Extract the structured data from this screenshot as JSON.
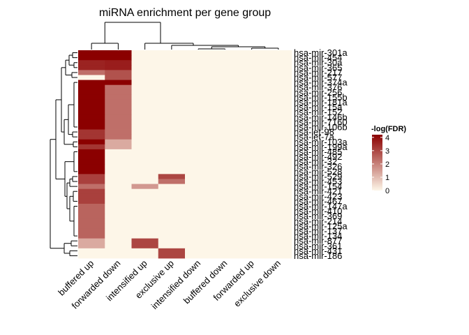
{
  "chart_data": {
    "type": "heatmap",
    "title": "miRNA enrichment per gene group",
    "columns": [
      "buffered up",
      "forwarded down",
      "intensified up",
      "exclusive up",
      "intensified down",
      "buffered down",
      "forwarded up",
      "exclusive down"
    ],
    "rows": [
      "hsa-mir-301a",
      "hsa-mir-454",
      "hsa-mir-30a",
      "hsa-mir-365",
      "hsa-mir-217",
      "hsa-mir-577",
      "hsa-mir-374a",
      "hsa-mir-376",
      "hsa-mir-256",
      "hsa-mir-155b",
      "hsa-mir-181a",
      "hsa-mir-15a",
      "hsa-mir-152",
      "hsa-mir-146b",
      "hsa-mir-7160",
      "hsa-mir-106b",
      "hsa-let-98",
      "hsa-let-7a",
      "hsa-mir-103a",
      "hsa-mir-199a",
      "hsa-mir-485",
      "hsa-mir-492",
      "hsa-mir-32",
      "hsa-mir-326",
      "hsa-mir-528",
      "hsa-mir-529",
      "hsa-mir-453",
      "hsa-mir-154",
      "hsa-mir-421",
      "hsa-mir-423",
      "hsa-mir-467",
      "hsa-mir-147a",
      "hsa-mir-410",
      "hsa-mir-369",
      "hsa-mir-214",
      "hsa-mir-125a",
      "hsa-mir-137",
      "hsa-mir-134",
      "hsa-mir-877",
      "hsa-mir-361",
      "hsa-mir-431",
      "hsa-mir-186"
    ],
    "values": [
      [
        4.2,
        4.2,
        0,
        0,
        0,
        0,
        0,
        0
      ],
      [
        4.2,
        4.2,
        0,
        0,
        0,
        0,
        0,
        0
      ],
      [
        3.6,
        3.7,
        0,
        0,
        0,
        0,
        0,
        0
      ],
      [
        3.6,
        3.7,
        0,
        0,
        0,
        0,
        0,
        0
      ],
      [
        2.3,
        2.8,
        0,
        0,
        0,
        0,
        0,
        0
      ],
      [
        0,
        2.8,
        0,
        0,
        0,
        0,
        0,
        0
      ],
      [
        4.2,
        4.2,
        0,
        0,
        0,
        0,
        0,
        0
      ],
      [
        4.2,
        2.3,
        0,
        0,
        0,
        0,
        0,
        0
      ],
      [
        4.2,
        2.3,
        0,
        0,
        0,
        0,
        0,
        0
      ],
      [
        4.2,
        2.3,
        0,
        0,
        0,
        0,
        0,
        0
      ],
      [
        4.2,
        2.3,
        0,
        0,
        0,
        0,
        0,
        0
      ],
      [
        4.2,
        2.3,
        0,
        0,
        0,
        0,
        0,
        0
      ],
      [
        4.2,
        2.3,
        0,
        0,
        0,
        0,
        0,
        0
      ],
      [
        4.2,
        2.3,
        0,
        0,
        0,
        0,
        0,
        0
      ],
      [
        4.2,
        2.3,
        0,
        0,
        0,
        0,
        0,
        0
      ],
      [
        4.2,
        2.3,
        0,
        0,
        0,
        0,
        0,
        0
      ],
      [
        3.3,
        2.3,
        0,
        0,
        0,
        0,
        0,
        0
      ],
      [
        3.3,
        2.3,
        0,
        0,
        0,
        0,
        0,
        0
      ],
      [
        4.2,
        1.3,
        0,
        0,
        0,
        0,
        0,
        0
      ],
      [
        3.3,
        1.3,
        0,
        0,
        0,
        0,
        0,
        0
      ],
      [
        4.2,
        0,
        0,
        0,
        0,
        0,
        0,
        0
      ],
      [
        4.2,
        0,
        0,
        0,
        0,
        0,
        0,
        0
      ],
      [
        4.2,
        0,
        0,
        0,
        0,
        0,
        0,
        0
      ],
      [
        4.2,
        0,
        0,
        0,
        0,
        0,
        0,
        0
      ],
      [
        4.2,
        0,
        0,
        0,
        0,
        0,
        0,
        0
      ],
      [
        3.1,
        0,
        0,
        3.0,
        0,
        0,
        0,
        0
      ],
      [
        3.1,
        0,
        0,
        2.3,
        0,
        0,
        0,
        0
      ],
      [
        2.3,
        0,
        1.6,
        0,
        0,
        0,
        0,
        0
      ],
      [
        3.1,
        0,
        0,
        0,
        0,
        0,
        0,
        0
      ],
      [
        3.1,
        0,
        0,
        0,
        0,
        0,
        0,
        0
      ],
      [
        3.1,
        0,
        0,
        0,
        0,
        0,
        0,
        0
      ],
      [
        2.5,
        0,
        0,
        0,
        0,
        0,
        0,
        0
      ],
      [
        2.5,
        0,
        0,
        0,
        0,
        0,
        0,
        0
      ],
      [
        2.5,
        0,
        0,
        0,
        0,
        0,
        0,
        0
      ],
      [
        2.5,
        0,
        0,
        0,
        0,
        0,
        0,
        0
      ],
      [
        2.5,
        0,
        0,
        0,
        0,
        0,
        0,
        0
      ],
      [
        2.5,
        0,
        0,
        0,
        0,
        0,
        0,
        0
      ],
      [
        2.5,
        0,
        0,
        0,
        0,
        0,
        0,
        0
      ],
      [
        1.3,
        0,
        3.0,
        0,
        0,
        0,
        0,
        0
      ],
      [
        1.3,
        0,
        3.0,
        0,
        0,
        0,
        0,
        0
      ],
      [
        0,
        0,
        0,
        3.0,
        0,
        0,
        0,
        0
      ],
      [
        0,
        0,
        0,
        3.0,
        0,
        0,
        0,
        0
      ]
    ],
    "legend": {
      "title": "-log(FDR)",
      "ticks": [
        0,
        1,
        2,
        3,
        4
      ],
      "range": [
        0,
        4.2
      ],
      "colors": [
        "#fdf6e8",
        "#8b0000"
      ]
    }
  }
}
